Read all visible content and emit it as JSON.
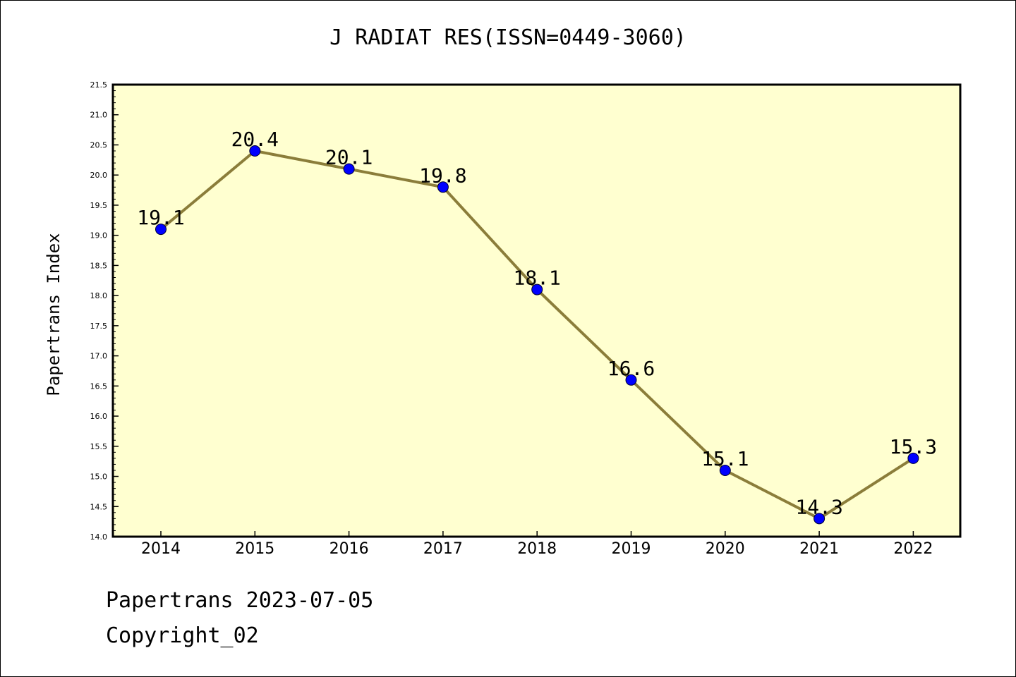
{
  "chart_data": {
    "type": "line",
    "title": "J RADIAT RES(ISSN=0449-3060)",
    "ylabel": "Papertrans Index",
    "xlabel": "",
    "x": [
      "2014",
      "2015",
      "2016",
      "2017",
      "2018",
      "2019",
      "2020",
      "2021",
      "2022"
    ],
    "series": [
      {
        "values": [
          19.1,
          20.4,
          20.1,
          19.8,
          18.1,
          16.6,
          15.1,
          14.3,
          15.3
        ]
      }
    ],
    "data_labels": [
      "19.1",
      "20.4",
      "20.1",
      "19.8",
      "18.1",
      "16.6",
      "15.1",
      "14.3",
      "15.3"
    ],
    "ylim": [
      14.0,
      21.5
    ],
    "yticks": [
      "14.0",
      "14.5",
      "15.0",
      "15.5",
      "16.0",
      "16.5",
      "17.0",
      "17.5",
      "18.0",
      "18.5",
      "19.0",
      "19.5",
      "20.0",
      "20.5",
      "21.0",
      "21.5"
    ],
    "grid": false,
    "colors": {
      "plot_background": "#ffffd0",
      "line": "#8b7d3a",
      "marker": "#0000ff"
    }
  },
  "footer": {
    "line1": "Papertrans 2023-07-05",
    "line2": "Copyright_02"
  }
}
